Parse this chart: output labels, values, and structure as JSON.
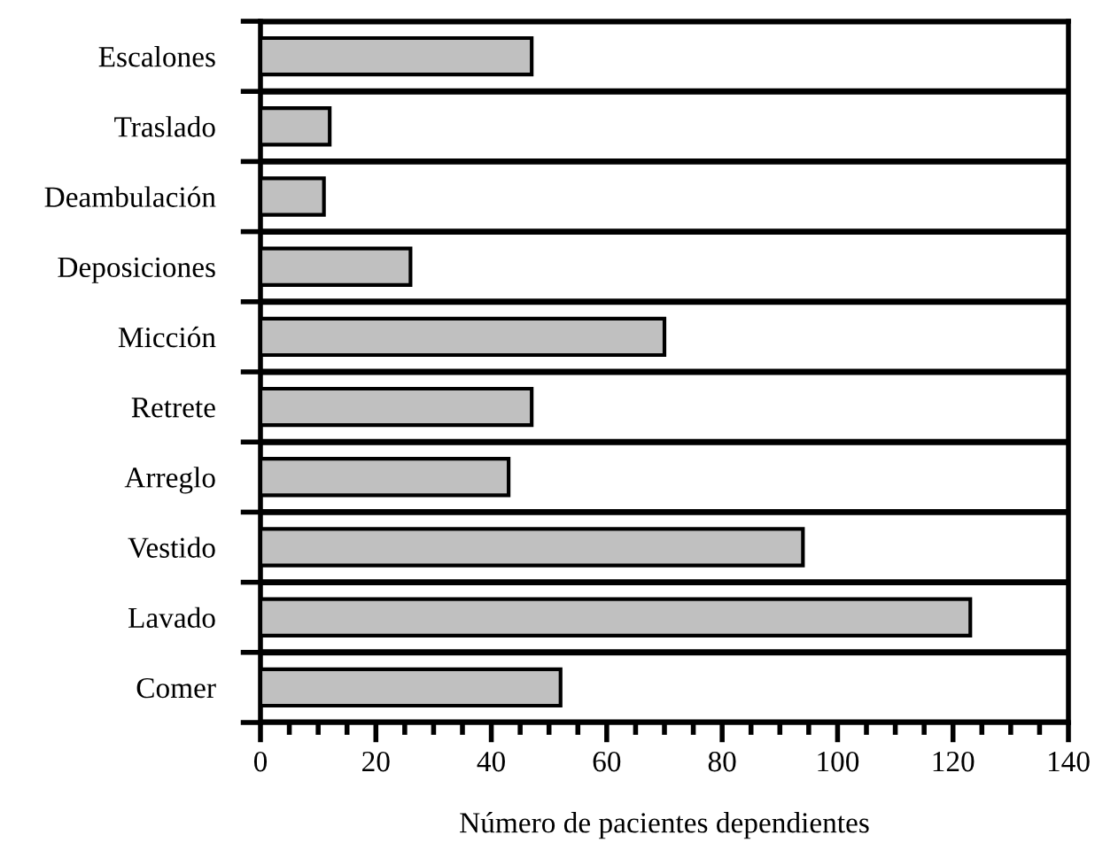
{
  "chart_data": {
    "type": "bar",
    "orientation": "horizontal",
    "xlabel": "Número de pacientes dependientes",
    "categories": [
      "Escalones",
      "Traslado",
      "Deambulación",
      "Deposiciones",
      "Micción",
      "Retrete",
      "Arreglo",
      "Vestido",
      "Lavado",
      "Comer"
    ],
    "values": [
      47,
      12,
      11,
      26,
      70,
      47,
      43,
      94,
      123,
      52
    ],
    "color": "#c0c0c0",
    "xlim": [
      0,
      140
    ],
    "xticks": [
      0,
      {
        "value": 5,
        "label": null
      },
      {
        "value": 10,
        "label": null
      },
      {
        "value": 15,
        "label": null
      },
      20,
      {
        "value": 25,
        "label": null
      },
      {
        "value": 30,
        "label": null
      },
      {
        "value": 35,
        "label": null
      },
      40,
      {
        "value": 45,
        "label": null
      },
      {
        "value": 50,
        "label": null
      },
      {
        "value": 55,
        "label": null
      },
      60,
      {
        "value": 65,
        "label": null
      },
      {
        "value": 70,
        "label": null
      },
      {
        "value": 75,
        "label": null
      },
      80,
      {
        "value": 85,
        "label": null
      },
      {
        "value": 90,
        "label": null
      },
      {
        "value": 95,
        "label": null
      },
      100,
      {
        "value": 105,
        "label": null
      },
      {
        "value": 110,
        "label": null
      },
      {
        "value": 115,
        "label": null
      },
      120,
      {
        "value": 125,
        "label": null
      },
      {
        "value": 130,
        "label": null
      },
      {
        "value": 135,
        "label": null
      },
      140
    ],
    "grid": "y",
    "legend": false
  }
}
